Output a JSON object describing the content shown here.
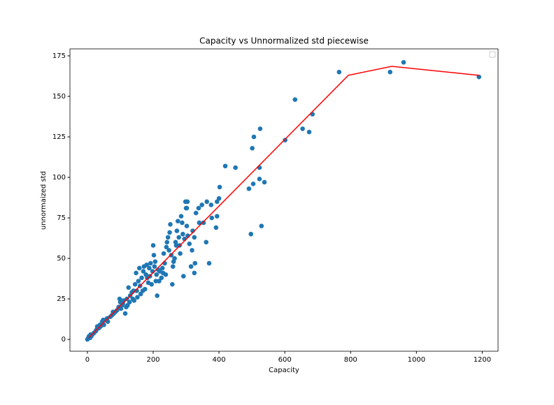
{
  "chart_data": {
    "type": "scatter",
    "title": "Capacity vs Unnormalized std piecewise",
    "x_label": "Capacity",
    "y_label": "unnormaized std",
    "xlim": [
      -53,
      1248
    ],
    "ylim": [
      -7.3,
      179.3
    ],
    "xticks": [
      0,
      200,
      400,
      600,
      800,
      1000,
      1200
    ],
    "yticks": [
      0,
      25,
      50,
      75,
      100,
      125,
      150,
      175
    ],
    "series": [
      {
        "type": "scatter",
        "color": "#1f77b4",
        "x": [
          0,
          3,
          5,
          8,
          10,
          12,
          15,
          20,
          25,
          28,
          30,
          35,
          38,
          40,
          45,
          48,
          50,
          55,
          60,
          62,
          70,
          75,
          78,
          80,
          85,
          90,
          95,
          98,
          100,
          102,
          105,
          108,
          110,
          115,
          118,
          120,
          122,
          125,
          128,
          130,
          135,
          138,
          140,
          142,
          145,
          148,
          150,
          152,
          155,
          158,
          160,
          162,
          165,
          168,
          170,
          172,
          175,
          178,
          180,
          182,
          185,
          188,
          190,
          192,
          195,
          198,
          200,
          202,
          204,
          206,
          208,
          210,
          212,
          215,
          218,
          220,
          225,
          228,
          230,
          232,
          235,
          238,
          240,
          242,
          245,
          248,
          250,
          252,
          255,
          258,
          260,
          262,
          265,
          268,
          270,
          272,
          275,
          278,
          280,
          282,
          285,
          288,
          290,
          292,
          295,
          298,
          300,
          302,
          305,
          310,
          315,
          318,
          320,
          325,
          330,
          340,
          1190,
          961,
          920,
          765,
          631,
          684,
          654,
          674,
          601,
          525,
          506,
          501,
          419,
          450,
          523,
          523,
          538,
          504,
          491,
          529,
          497,
          402,
          400,
          394,
          394,
          391,
          376,
          378,
          363,
          348,
          338,
          353,
          361,
          370,
          327,
          325,
          304,
          302
        ],
        "y": [
          0,
          1,
          2,
          1,
          3,
          2,
          3,
          4,
          5,
          6,
          8,
          7,
          9,
          8,
          11,
          12,
          9,
          12,
          13,
          11,
          14,
          15,
          17,
          16,
          17,
          18,
          20,
          25,
          23,
          19,
          21,
          22,
          24,
          16,
          20,
          25,
          21,
          32,
          23,
          27,
          29,
          25,
          30,
          24,
          34,
          41,
          30,
          26,
          36,
          44,
          33,
          28,
          38,
          30,
          42,
          45,
          31,
          40,
          46,
          38,
          35,
          44,
          39,
          47,
          34,
          42,
          58,
          52,
          45,
          48,
          36,
          40,
          27,
          43,
          36,
          42,
          38,
          44,
          41,
          53,
          47,
          40,
          57,
          60,
          63,
          55,
          66,
          71,
          52,
          34,
          45,
          48,
          50,
          60,
          58,
          67,
          73,
          63,
          58,
          53,
          76,
          72,
          65,
          39,
          62,
          85,
          81,
          70,
          64,
          59,
          45,
          55,
          67,
          63,
          78,
          72,
          162,
          171,
          165,
          165,
          148,
          139,
          130,
          128,
          123,
          130,
          125,
          118,
          107,
          106,
          106,
          99,
          97,
          96,
          93,
          70,
          65,
          94,
          87,
          85,
          76,
          69,
          83,
          75,
          85,
          83,
          81,
          72,
          60,
          47,
          47,
          41,
          85,
          81
        ]
      },
      {
        "type": "line",
        "color": "#ff0000",
        "x": [
          4,
          793,
          925,
          1190
        ],
        "y": [
          1,
          163,
          168.5,
          163
        ]
      }
    ]
  }
}
